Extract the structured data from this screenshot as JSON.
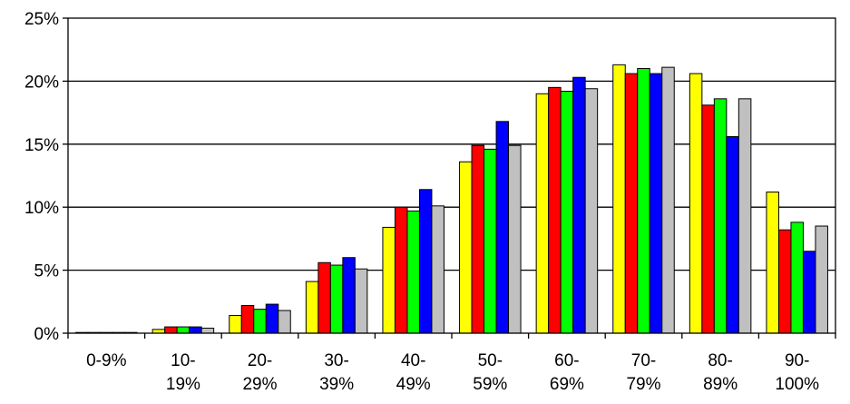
{
  "chart_data": {
    "type": "bar",
    "title": "",
    "xlabel": "",
    "ylabel": "",
    "ylim": [
      0,
      25
    ],
    "yticks": [
      0,
      5,
      10,
      15,
      20,
      25
    ],
    "ytick_labels": [
      "0%",
      "5%",
      "10%",
      "15%",
      "20%",
      "25%"
    ],
    "grid": true,
    "legend": "none",
    "categories": [
      [
        "0-9%"
      ],
      [
        "10-",
        "19%"
      ],
      [
        "20-",
        "29%"
      ],
      [
        "30-",
        "39%"
      ],
      [
        "40-",
        "49%"
      ],
      [
        "50-",
        "59%"
      ],
      [
        "60-",
        "69%"
      ],
      [
        "70-",
        "79%"
      ],
      [
        "80-",
        "89%"
      ],
      [
        "90-",
        "100%"
      ]
    ],
    "series": [
      {
        "color": "#ffff00",
        "values": [
          0.05,
          0.3,
          1.4,
          4.1,
          8.4,
          13.6,
          19.0,
          21.3,
          20.6,
          11.2
        ]
      },
      {
        "color": "#ff0000",
        "values": [
          0.05,
          0.5,
          2.2,
          5.6,
          10.0,
          14.9,
          19.5,
          20.6,
          18.1,
          8.2
        ]
      },
      {
        "color": "#00ff00",
        "values": [
          0.05,
          0.5,
          1.9,
          5.4,
          9.7,
          14.6,
          19.2,
          21.0,
          18.6,
          8.8
        ]
      },
      {
        "color": "#0000ff",
        "values": [
          0.05,
          0.5,
          2.3,
          6.0,
          11.4,
          16.8,
          20.3,
          20.6,
          15.6,
          6.5
        ]
      },
      {
        "color": "#c0c0c0",
        "values": [
          0.05,
          0.4,
          1.8,
          5.1,
          10.1,
          14.9,
          19.4,
          21.1,
          18.6,
          8.5
        ]
      }
    ]
  }
}
